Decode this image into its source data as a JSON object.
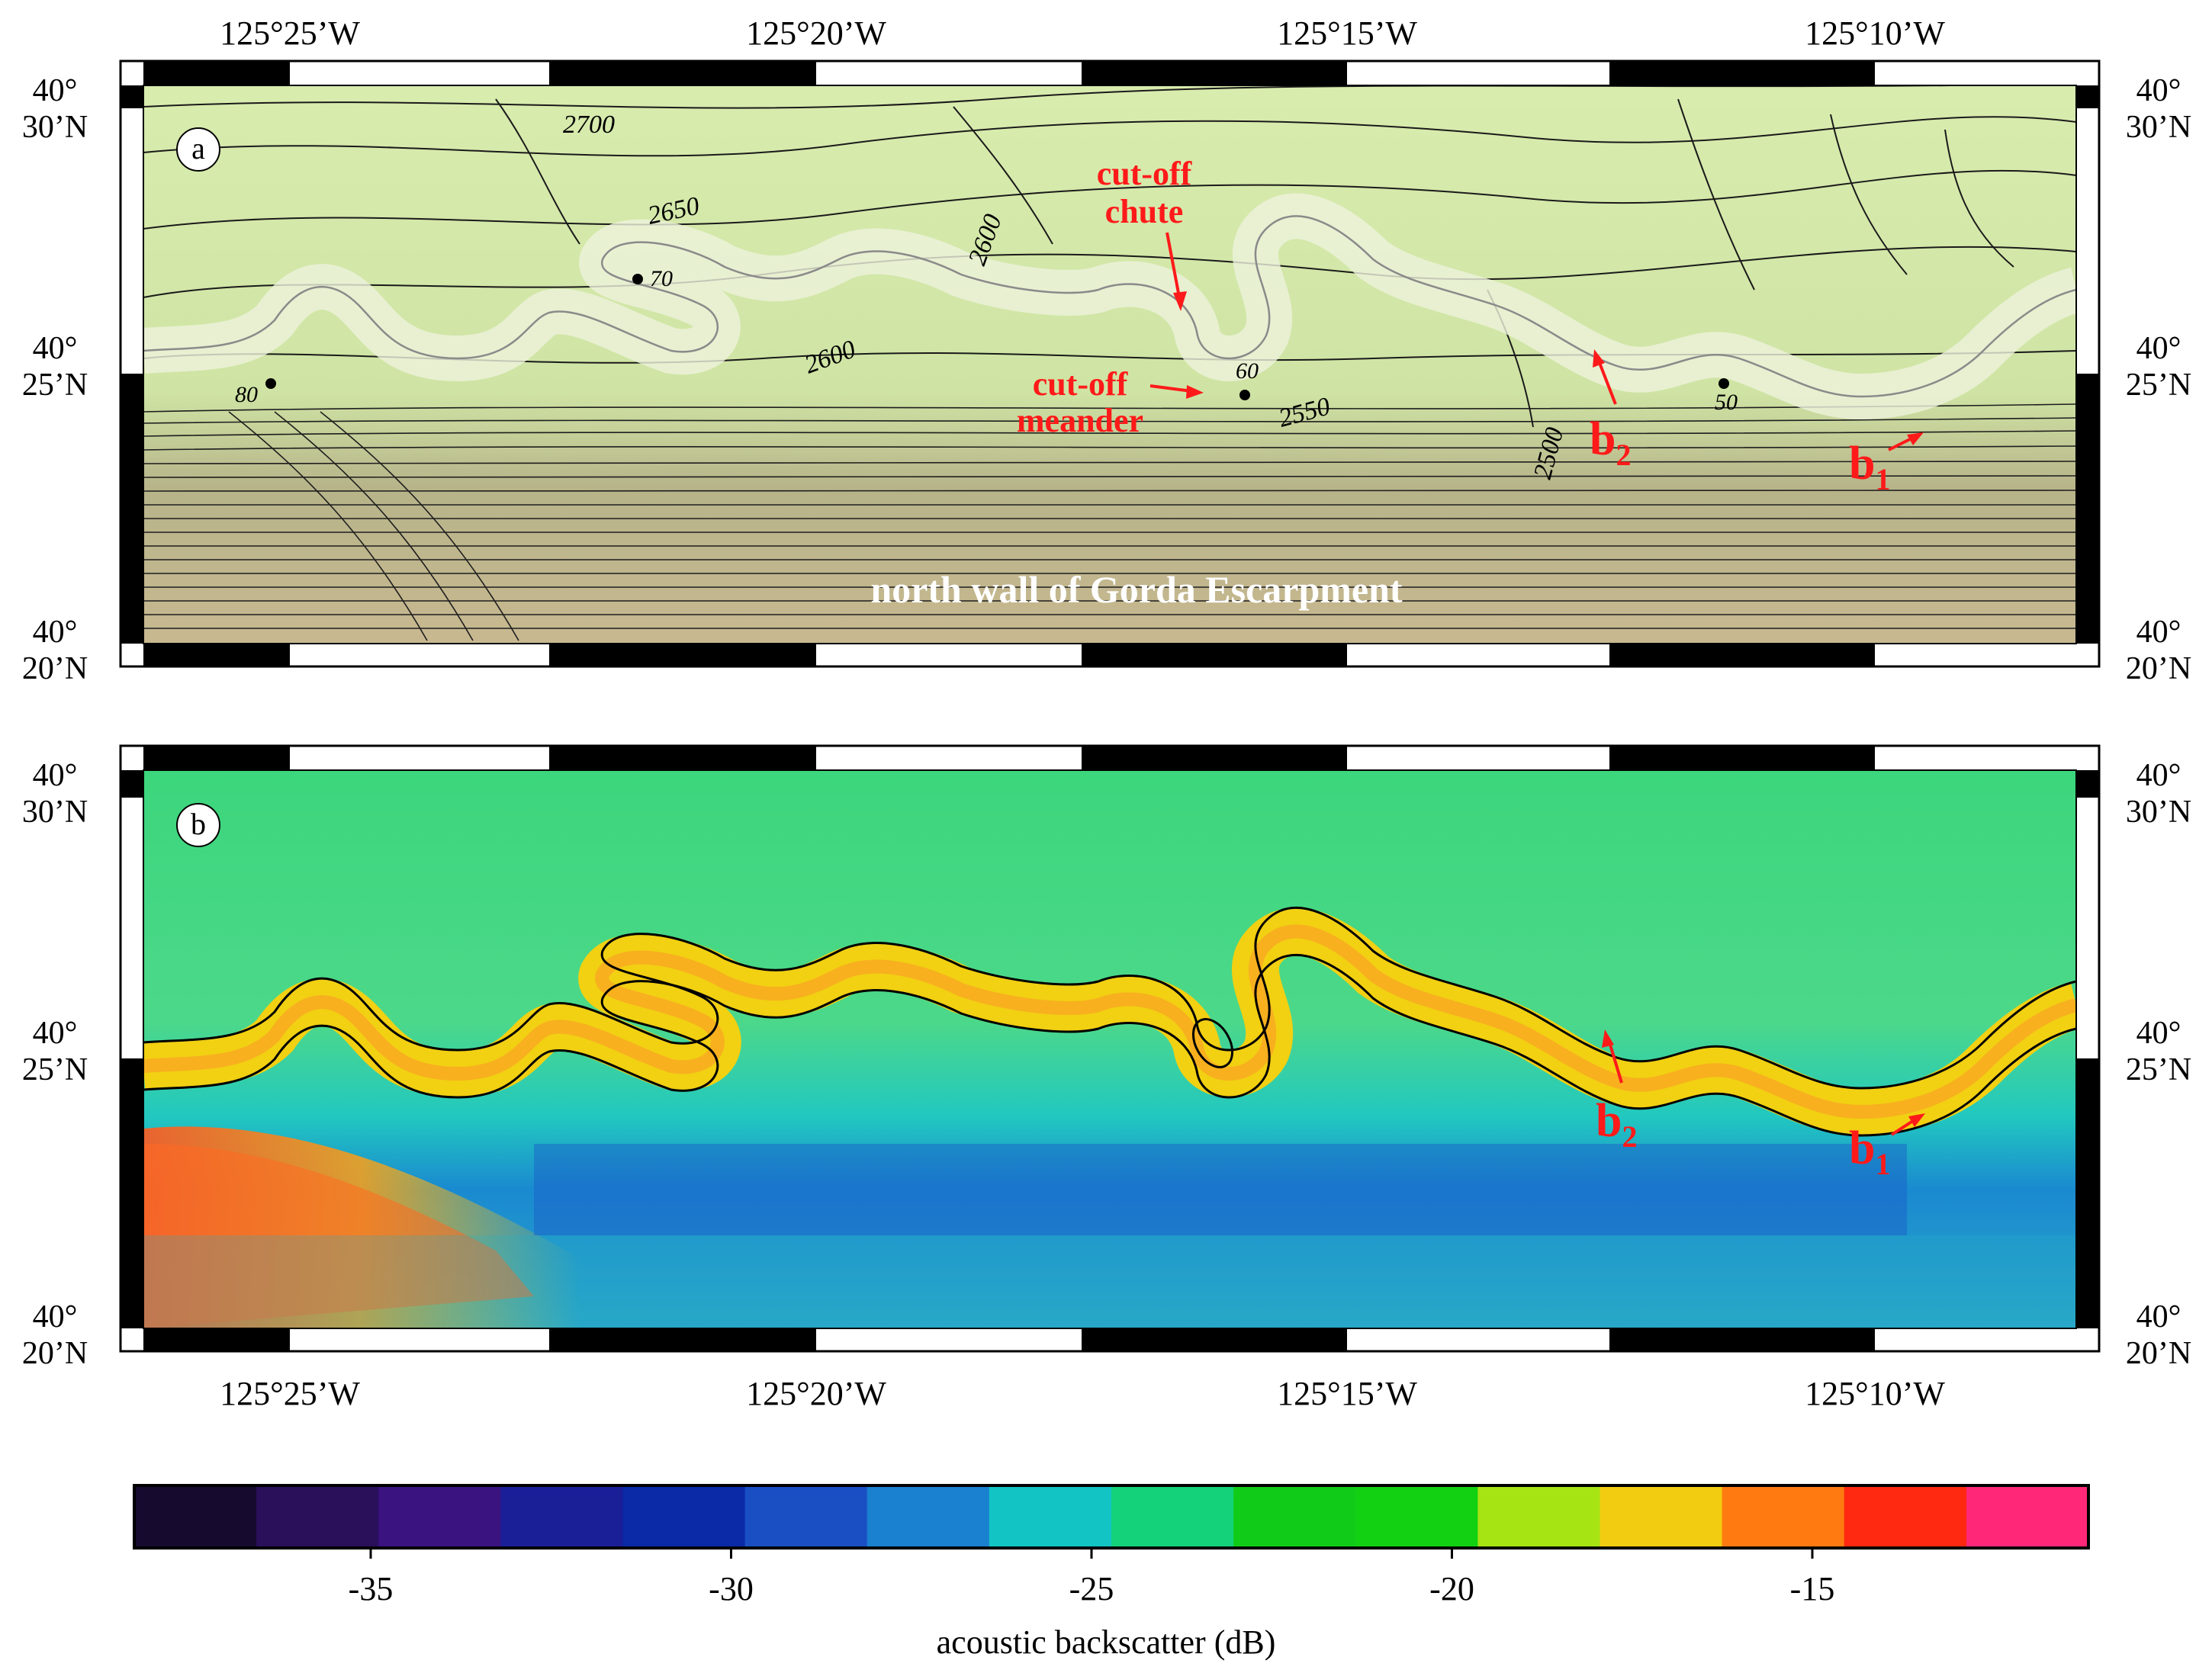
{
  "panels": {
    "a": {
      "label": "a",
      "depth_contour_labels": [
        "2700",
        "2650",
        "2600",
        "2600",
        "2550",
        "2500"
      ],
      "distance_markers": [
        "80",
        "70",
        "60",
        "50"
      ],
      "annotations": {
        "cutoff_chute_line1": "cut-off",
        "cutoff_chute_line2": "chute",
        "cutoff_meander_line1": "cut-off",
        "cutoff_meander_line2": "meander",
        "b2_main": "b",
        "b2_sub": "2",
        "b1_main": "b",
        "b1_sub": "1",
        "escarpment": "north wall of Gorda Escarpment"
      }
    },
    "b": {
      "label": "b",
      "annotations": {
        "b2_main": "b",
        "b2_sub": "2",
        "b1_main": "b",
        "b1_sub": "1"
      }
    }
  },
  "axes": {
    "longitude_ticks": [
      "125°25’W",
      "125°20’W",
      "125°15’W",
      "125°10’W"
    ],
    "lat_tick_top": {
      "deg": "40°",
      "min": "30’N"
    },
    "lat_tick_mid": {
      "deg": "40°",
      "min": "25’N"
    },
    "lat_tick_bottom": {
      "deg": "40°",
      "min": "20’N"
    }
  },
  "colorbar": {
    "title": "acoustic backscatter (dB)",
    "ticks": [
      "-35",
      "-30",
      "-25",
      "-20",
      "-15"
    ],
    "colors": [
      "#160a2e",
      "#2a0f5a",
      "#3a1380",
      "#1a1f98",
      "#0a2aa8",
      "#1a4fc4",
      "#1a80d0",
      "#12c4c4",
      "#14d27a",
      "#10cc18",
      "#12d012",
      "#a6e414",
      "#f2cc10",
      "#ff7a10",
      "#ff2810",
      "#ff2878"
    ]
  }
}
